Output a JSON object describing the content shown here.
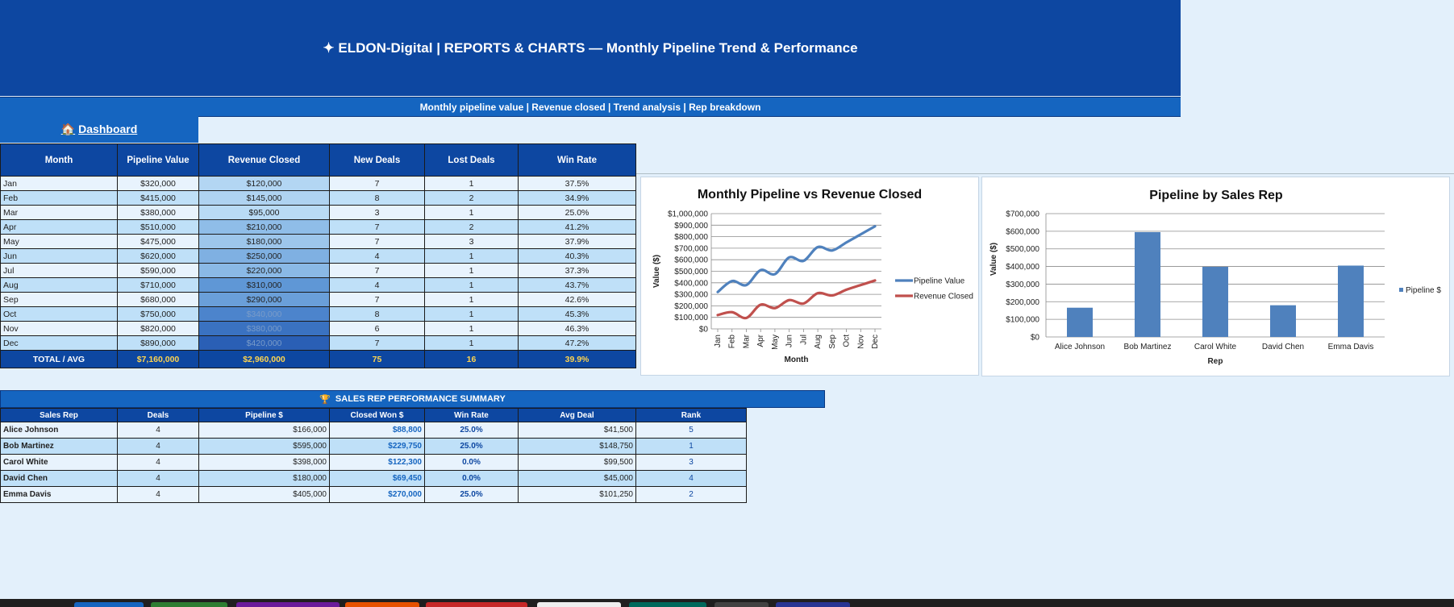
{
  "header": {
    "title": "✦  ELDON-Digital  |  REPORTS & CHARTS  —  Monthly Pipeline Trend & Performance"
  },
  "subheader": {
    "text": "Monthly pipeline value  |  Revenue closed  |  Trend analysis  |  Rep breakdown"
  },
  "dashboard_link": {
    "icon": "🏠",
    "label": "Dashboard"
  },
  "monthly_table": {
    "headers": [
      "Month",
      "Pipeline Value",
      "Revenue Closed",
      "New Deals",
      "Lost Deals",
      "Win Rate"
    ],
    "rows": [
      [
        "Jan",
        "$320,000",
        "$120,000",
        "7",
        "1",
        "37.5%"
      ],
      [
        "Feb",
        "$415,000",
        "$145,000",
        "8",
        "2",
        "34.9%"
      ],
      [
        "Mar",
        "$380,000",
        "$95,000",
        "3",
        "1",
        "25.0%"
      ],
      [
        "Apr",
        "$510,000",
        "$210,000",
        "7",
        "2",
        "41.2%"
      ],
      [
        "May",
        "$475,000",
        "$180,000",
        "7",
        "3",
        "37.9%"
      ],
      [
        "Jun",
        "$620,000",
        "$250,000",
        "4",
        "1",
        "40.3%"
      ],
      [
        "Jul",
        "$590,000",
        "$220,000",
        "7",
        "1",
        "37.3%"
      ],
      [
        "Aug",
        "$710,000",
        "$310,000",
        "4",
        "1",
        "43.7%"
      ],
      [
        "Sep",
        "$680,000",
        "$290,000",
        "7",
        "1",
        "42.6%"
      ],
      [
        "Oct",
        "$750,000",
        "$340,000",
        "8",
        "1",
        "45.3%"
      ],
      [
        "Nov",
        "$820,000",
        "$380,000",
        "6",
        "1",
        "46.3%"
      ],
      [
        "Dec",
        "$890,000",
        "$420,000",
        "7",
        "1",
        "47.2%"
      ]
    ],
    "revenue_shades": [
      "#b3d6f3",
      "#afd3f1",
      "#b9dbf5",
      "#8fbde8",
      "#9dc6eb",
      "#7fb0e2",
      "#8ab9e6",
      "#5f97d6",
      "#6a9fd9",
      "#4c84cc",
      "#3a72c1",
      "#2a5fb5"
    ],
    "total": [
      "TOTAL / AVG",
      "$7,160,000",
      "$2,960,000",
      "75",
      "16",
      "39.9%"
    ]
  },
  "rep_section": {
    "title": "SALES REP PERFORMANCE SUMMARY",
    "icon": "🏆",
    "headers": [
      "Sales Rep",
      "Deals",
      "Pipeline $",
      "Closed Won $",
      "Win Rate",
      "Avg Deal",
      "Rank"
    ],
    "rows": [
      [
        "Alice Johnson",
        "4",
        "$166,000",
        "$88,800",
        "25.0%",
        "$41,500",
        "5"
      ],
      [
        "Bob Martinez",
        "4",
        "$595,000",
        "$229,750",
        "25.0%",
        "$148,750",
        "1"
      ],
      [
        "Carol White",
        "4",
        "$398,000",
        "$122,300",
        "0.0%",
        "$99,500",
        "3"
      ],
      [
        "David Chen",
        "4",
        "$180,000",
        "$69,450",
        "0.0%",
        "$45,000",
        "4"
      ],
      [
        "Emma Davis",
        "4",
        "$405,000",
        "$270,000",
        "25.0%",
        "$101,250",
        "2"
      ]
    ]
  },
  "chart_data": [
    {
      "type": "line",
      "title": "Monthly Pipeline vs Revenue Closed",
      "xlabel": "Month",
      "ylabel": "Value ($)",
      "categories": [
        "Jan",
        "Feb",
        "Mar",
        "Apr",
        "May",
        "Jun",
        "Jul",
        "Aug",
        "Sep",
        "Oct",
        "Nov",
        "Dec"
      ],
      "series": [
        {
          "name": "Pipeline Value",
          "color": "#4f81bd",
          "values": [
            320000,
            415000,
            380000,
            510000,
            475000,
            620000,
            590000,
            710000,
            680000,
            750000,
            820000,
            890000
          ]
        },
        {
          "name": "Revenue Closed",
          "color": "#c0504d",
          "values": [
            120000,
            145000,
            95000,
            210000,
            180000,
            250000,
            220000,
            310000,
            290000,
            340000,
            380000,
            420000
          ]
        }
      ],
      "ylim": [
        0,
        1000000
      ],
      "yticks": [
        "$0",
        "$100,000",
        "$200,000",
        "$300,000",
        "$400,000",
        "$500,000",
        "$600,000",
        "$700,000",
        "$800,000",
        "$900,000",
        "$1,000,000"
      ],
      "grid": true,
      "legend": "right"
    },
    {
      "type": "bar",
      "title": "Pipeline by Sales Rep",
      "xlabel": "Rep",
      "ylabel": "Value ($)",
      "categories": [
        "Alice Johnson",
        "Bob Martinez",
        "Carol White",
        "David Chen",
        "Emma Davis"
      ],
      "series": [
        {
          "name": "Pipeline $",
          "color": "#4f81bd",
          "values": [
            166000,
            595000,
            398000,
            180000,
            405000
          ]
        }
      ],
      "ylim": [
        0,
        700000
      ],
      "yticks": [
        "$0",
        "$100,000",
        "$200,000",
        "$300,000",
        "$400,000",
        "$500,000",
        "$600,000",
        "$700,000"
      ],
      "grid": true,
      "legend": "right"
    }
  ],
  "sheet_tabs": {
    "colors": [
      "#1565c0",
      "#2e7d32",
      "#6a1b9a",
      "#e65100",
      "#c62828",
      "#eeeeee",
      "#00695c",
      "#424242",
      "#283593"
    ]
  }
}
